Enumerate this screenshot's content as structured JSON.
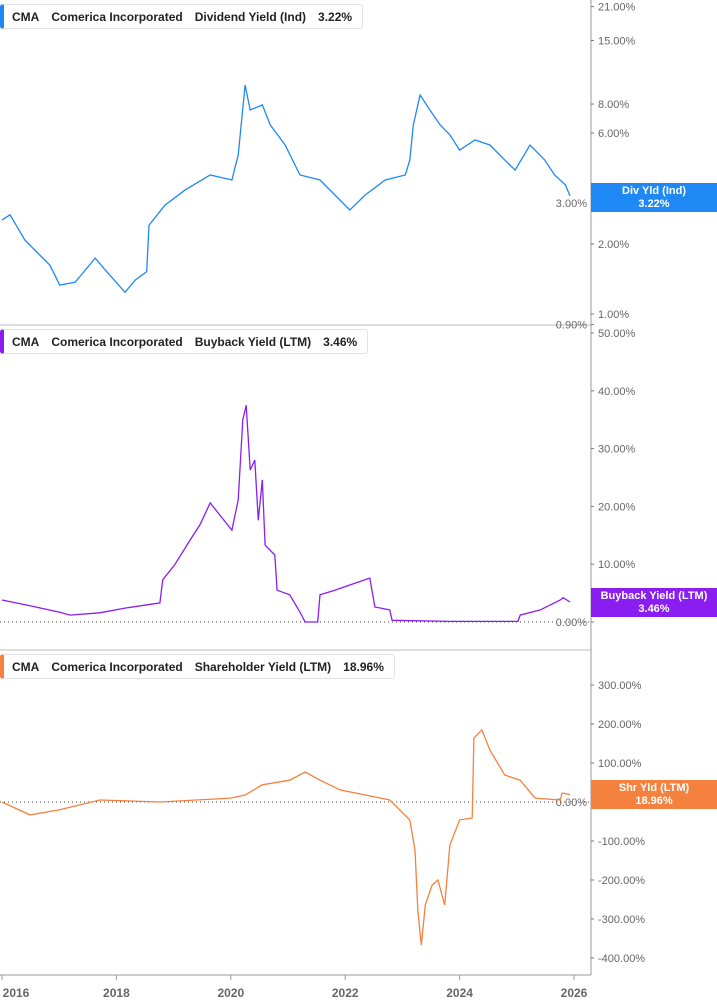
{
  "chart_data": [
    {
      "type": "line",
      "scale": "log",
      "color": "#1e88f5",
      "legend": {
        "ticker": "CMA",
        "company": "Comerica Incorporated",
        "metric": "Dividend Yield (Ind)",
        "value": "3.22%"
      },
      "tag": {
        "label": "Div Yld (Ind)",
        "value": "3.22%"
      },
      "yticks": [
        "21.00%",
        "15.00%",
        "8.00%",
        "6.00%",
        "3.00%",
        "2.00%",
        "1.00%",
        "0.90%"
      ],
      "ytick_values": [
        21,
        15,
        8,
        6,
        3,
        2,
        1,
        0.9
      ],
      "x": [
        2016.0,
        2016.14,
        2016.4,
        2016.84,
        2017.01,
        2017.28,
        2017.63,
        2017.8,
        2018.15,
        2018.33,
        2018.53,
        2018.57,
        2018.85,
        2019.2,
        2019.64,
        2020.02,
        2020.13,
        2020.25,
        2020.34,
        2020.55,
        2020.69,
        2020.95,
        2021.21,
        2021.56,
        2021.82,
        2022.08,
        2022.35,
        2022.7,
        2023.05,
        2023.13,
        2023.19,
        2023.31,
        2023.48,
        2023.66,
        2023.83,
        2024.0,
        2024.27,
        2024.53,
        2024.79,
        2024.97,
        2025.23,
        2025.49,
        2025.66,
        2025.85,
        2025.93
      ],
      "y": [
        2.54,
        2.67,
        2.08,
        1.62,
        1.33,
        1.37,
        1.74,
        1.55,
        1.24,
        1.4,
        1.52,
        2.41,
        2.94,
        3.41,
        3.96,
        3.77,
        4.83,
        9.66,
        7.54,
        7.93,
        6.5,
        5.33,
        3.96,
        3.77,
        3.25,
        2.8,
        3.25,
        3.77,
        3.96,
        4.59,
        6.5,
        8.75,
        7.54,
        6.5,
        5.89,
        5.07,
        5.6,
        5.33,
        4.59,
        4.16,
        5.33,
        4.59,
        3.96,
        3.59,
        3.22
      ]
    },
    {
      "type": "line",
      "scale": "linear",
      "color": "#8a1ef0",
      "legend": {
        "ticker": "CMA",
        "company": "Comerica Incorporated",
        "metric": "Buyback Yield (LTM)",
        "value": "3.46%"
      },
      "tag": {
        "label": "Buyback Yield (LTM)",
        "value": "3.46%"
      },
      "yticks": [
        "50.00%",
        "40.00%",
        "30.00%",
        "20.00%",
        "10.00%",
        "0.00%"
      ],
      "ytick_values": [
        50,
        40,
        30,
        20,
        10,
        0
      ],
      "x": [
        2016.0,
        2016.49,
        2017.01,
        2017.19,
        2017.71,
        2018.15,
        2018.76,
        2018.81,
        2019.02,
        2019.29,
        2019.46,
        2019.64,
        2019.81,
        2020.02,
        2020.13,
        2020.21,
        2020.27,
        2020.34,
        2020.42,
        2020.48,
        2020.55,
        2020.6,
        2020.77,
        2020.81,
        2021.03,
        2021.21,
        2021.3,
        2021.52,
        2021.56,
        2021.82,
        2022.08,
        2022.43,
        2022.52,
        2022.78,
        2022.82,
        2023.83,
        2025.02,
        2025.06,
        2025.41,
        2025.76,
        2025.81,
        2025.93
      ],
      "y": [
        3.8,
        2.8,
        1.7,
        1.2,
        1.6,
        2.4,
        3.3,
        7.3,
        9.9,
        14.2,
        16.8,
        20.6,
        18.5,
        15.9,
        21.1,
        35,
        37.5,
        26.3,
        28,
        17.6,
        24.6,
        13.3,
        11.6,
        5.5,
        4.7,
        1.7,
        0,
        0,
        4.7,
        5.5,
        6.4,
        7.6,
        2.6,
        2.1,
        0.3,
        0.1,
        0.1,
        1.2,
        2.1,
        3.8,
        4.2,
        3.46
      ]
    },
    {
      "type": "line",
      "scale": "linear",
      "color": "#f5813f",
      "legend": {
        "ticker": "CMA",
        "company": "Comerica Incorporated",
        "metric": "Shareholder Yield (LTM)",
        "value": "18.96%"
      },
      "tag": {
        "label": "Shr Yld (LTM)",
        "value": "18.96%"
      },
      "yticks": [
        "300.00%",
        "200.00%",
        "100.00%",
        "0.00%",
        "-100.00%",
        "-200.00%",
        "-300.00%",
        "-400.00%"
      ],
      "ytick_values": [
        300,
        200,
        100,
        0,
        -100,
        -200,
        -300,
        -400
      ],
      "x": [
        2016.0,
        2016.49,
        2017.01,
        2017.71,
        2018.76,
        2020.0,
        2020.25,
        2020.55,
        2021.03,
        2021.3,
        2021.56,
        2021.91,
        2022.78,
        2023.13,
        2023.22,
        2023.27,
        2023.33,
        2023.4,
        2023.52,
        2023.62,
        2023.74,
        2023.83,
        2024.0,
        2024.22,
        2024.25,
        2024.39,
        2024.53,
        2024.79,
        2025.06,
        2025.32,
        2025.76,
        2025.79,
        2025.93
      ],
      "y": [
        0,
        -33,
        -20,
        5,
        0,
        10,
        18,
        44,
        56,
        77,
        56,
        31,
        5,
        -46,
        -123,
        -277,
        -367,
        -264,
        -213,
        -200,
        -264,
        -110,
        -46,
        -41,
        164,
        185,
        133,
        69,
        56,
        10,
        5,
        23,
        18.96
      ]
    }
  ],
  "xaxis": {
    "ticks": [
      "2016",
      "2018",
      "2020",
      "2022",
      "2024",
      "2026"
    ],
    "tick_values": [
      2016,
      2018,
      2020,
      2022,
      2024,
      2026
    ]
  }
}
